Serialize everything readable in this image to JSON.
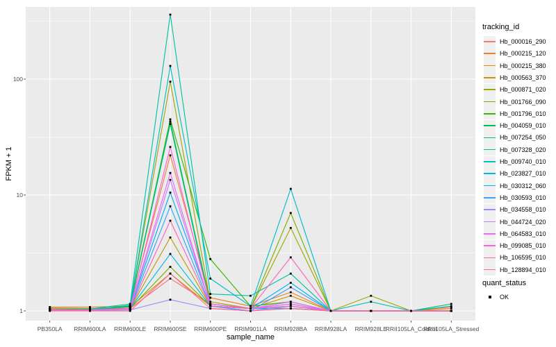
{
  "figure": {
    "background": "#FFFFFF",
    "panel_background": "#EBEBEB",
    "grid_color": "#FFFFFF",
    "tick_color": "#333333",
    "tick_label_color": "#4D4D4D",
    "point_color": "#000000",
    "legend_key_fill": "#F0F0F0"
  },
  "axes": {
    "x_title": "sample_name",
    "y_title": "FPKM + 1",
    "y_tick_labels": [
      "1",
      "10",
      "100"
    ]
  },
  "legend": {
    "tracking_title": "tracking_id",
    "quant_title": "quant_status",
    "quant_items": [
      {
        "label": "OK"
      }
    ]
  },
  "chart_data": {
    "type": "line",
    "title": "",
    "xlabel": "sample_name",
    "ylabel": "FPKM + 1",
    "y_scale": "log10",
    "ylim": [
      0.82,
      420
    ],
    "y_major_ticks": [
      1,
      10,
      100
    ],
    "y_minor_ticks": [
      3.1623,
      31.623,
      316.23
    ],
    "grid": true,
    "legend_position": "right",
    "point_marker": "small-black-square",
    "categories": [
      "PB350LA",
      "RRIM600LA",
      "RRIM600LE",
      "RRIM600SE",
      "RRIM600PE",
      "RRIM901LA",
      "RRIM928BA",
      "RRIM928LA",
      "RRIM928LE",
      "RRII105LA_Control",
      "RRII105LA_Stressed"
    ],
    "series": [
      {
        "name": "Hb_000016_290",
        "color": "#F8766D",
        "values": [
          1.05,
          1.05,
          1.05,
          1.9,
          1.15,
          1.05,
          1.15,
          1.0,
          1.0,
          1.0,
          1.08
        ]
      },
      {
        "name": "Hb_000215_120",
        "color": "#EA8331",
        "values": [
          1.08,
          1.08,
          1.1,
          22,
          1.3,
          1.1,
          1.45,
          1.0,
          1.0,
          1.0,
          1.0
        ]
      },
      {
        "name": "Hb_000215_380",
        "color": "#D89000",
        "values": [
          1.06,
          1.05,
          1.08,
          2.1,
          1.1,
          1.05,
          1.35,
          1.0,
          1.0,
          1.0,
          1.05
        ]
      },
      {
        "name": "Hb_000563_370",
        "color": "#C09B00",
        "values": [
          1.03,
          1.03,
          1.05,
          4.3,
          1.1,
          1.0,
          1.1,
          1.0,
          1.0,
          1.0,
          1.0
        ]
      },
      {
        "name": "Hb_000871_020",
        "color": "#A3A500",
        "values": [
          1.02,
          1.02,
          1.1,
          95,
          1.2,
          1.05,
          5.2,
          1.0,
          1.35,
          1.0,
          1.0
        ]
      },
      {
        "name": "Hb_001766_090",
        "color": "#7CAE00",
        "values": [
          1.02,
          1.02,
          1.05,
          2.4,
          1.1,
          1.05,
          7.0,
          1.0,
          1.0,
          1.0,
          1.0
        ]
      },
      {
        "name": "Hb_001796_010",
        "color": "#39B600",
        "values": [
          1.02,
          1.03,
          1.08,
          45,
          2.8,
          1.1,
          1.2,
          1.0,
          1.0,
          1.0,
          1.0
        ]
      },
      {
        "name": "Hb_004059_010",
        "color": "#00BB4E",
        "values": [
          1.02,
          1.02,
          1.12,
          43,
          1.15,
          1.05,
          1.1,
          1.0,
          1.0,
          1.0,
          1.0
        ]
      },
      {
        "name": "Hb_007254_050",
        "color": "#00BF7D",
        "values": [
          1.02,
          1.02,
          1.1,
          41,
          1.1,
          1.05,
          1.05,
          1.0,
          1.0,
          1.0,
          1.15
        ]
      },
      {
        "name": "Hb_007328_020",
        "color": "#00C1A3",
        "values": [
          1.03,
          1.04,
          1.15,
          360,
          1.4,
          1.35,
          2.1,
          1.0,
          1.0,
          1.0,
          1.1
        ]
      },
      {
        "name": "Hb_009740_010",
        "color": "#00BFC4",
        "values": [
          1.02,
          1.03,
          1.1,
          130,
          1.9,
          1.1,
          11.3,
          1.0,
          1.2,
          1.0,
          1.0
        ]
      },
      {
        "name": "Hb_023827_010",
        "color": "#00BAE0",
        "values": [
          1.02,
          1.02,
          1.05,
          3.1,
          1.1,
          1.05,
          1.05,
          1.0,
          1.0,
          1.0,
          1.0
        ]
      },
      {
        "name": "Hb_030312_060",
        "color": "#00B0F6",
        "values": [
          1.02,
          1.02,
          1.05,
          10.5,
          1.15,
          1.05,
          1.75,
          1.0,
          1.0,
          1.0,
          1.0
        ]
      },
      {
        "name": "Hb_030593_010",
        "color": "#35A2FF",
        "values": [
          1.02,
          1.02,
          1.04,
          8.0,
          1.1,
          1.0,
          1.6,
          1.0,
          1.0,
          1.0,
          1.0
        ]
      },
      {
        "name": "Hb_034558_010",
        "color": "#9590FF",
        "values": [
          1.01,
          1.01,
          1.02,
          1.25,
          1.05,
          1.0,
          1.1,
          1.0,
          1.0,
          1.0,
          1.0
        ]
      },
      {
        "name": "Hb_044724_020",
        "color": "#C77CFF",
        "values": [
          1.02,
          1.02,
          1.04,
          13.5,
          1.1,
          1.05,
          1.2,
          1.0,
          1.0,
          1.0,
          1.0
        ]
      },
      {
        "name": "Hb_064583_010",
        "color": "#E76BF3",
        "values": [
          1.02,
          1.02,
          1.05,
          15.5,
          1.1,
          1.05,
          1.15,
          1.0,
          1.0,
          1.0,
          1.0
        ]
      },
      {
        "name": "Hb_099085_010",
        "color": "#FA62DB",
        "values": [
          1.02,
          1.02,
          1.05,
          26,
          1.15,
          1.05,
          1.1,
          1.0,
          1.0,
          1.0,
          1.0
        ]
      },
      {
        "name": "Hb_106595_010",
        "color": "#FF62BC",
        "values": [
          1.02,
          1.02,
          1.04,
          6.0,
          1.1,
          1.05,
          2.9,
          1.0,
          1.0,
          1.0,
          1.0
        ]
      },
      {
        "name": "Hb_128894_010",
        "color": "#FF6A98",
        "values": [
          1.0,
          1.0,
          1.0,
          2.1,
          1.05,
          1.0,
          1.05,
          1.0,
          1.0,
          1.0,
          1.0
        ]
      }
    ]
  }
}
